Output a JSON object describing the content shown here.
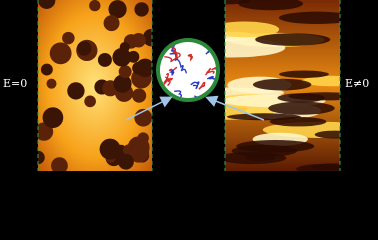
{
  "labels": {
    "left": "E=0",
    "right": "E≠0"
  }
}
